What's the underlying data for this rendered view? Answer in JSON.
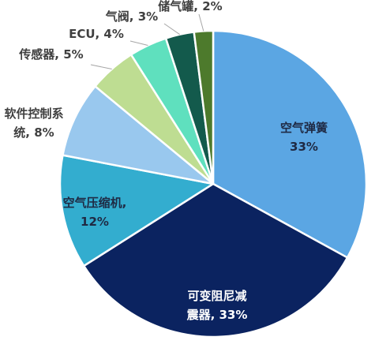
{
  "chart_data": {
    "type": "pie",
    "title": "",
    "start_angle_deg": 0,
    "direction": "clockwise",
    "legend": "none",
    "slices": [
      {
        "label": "空气弹簧",
        "value": 33,
        "color": "#5ba6e3",
        "label_lines": [
          "空气弹簧",
          "33%"
        ],
        "label_color": "#1f2a44"
      },
      {
        "label": "可变阻尼减震器",
        "value": 33,
        "color": "#0b2360",
        "label_lines": [
          "可变阻尼减",
          "震器, 33%"
        ],
        "label_color": "#ffffff"
      },
      {
        "label": "空气压缩机",
        "value": 12,
        "color": "#33adcf",
        "label_lines": [
          "空气压缩机,",
          "12%"
        ],
        "label_color": "#1f2a44"
      },
      {
        "label": "软件控制系统",
        "value": 8,
        "color": "#99c8ee",
        "label_lines": [
          "软件控制系",
          "统, 8%"
        ],
        "label_color": "#404040"
      },
      {
        "label": "传感器",
        "value": 5,
        "color": "#bedd92",
        "label_lines": [
          "传感器, 5%"
        ],
        "label_color": "#404040"
      },
      {
        "label": "ECU",
        "value": 4,
        "color": "#5fe0be",
        "label_lines": [
          "ECU, 4%"
        ],
        "label_color": "#404040"
      },
      {
        "label": "气阀",
        "value": 3,
        "color": "#135a4c",
        "label_lines": [
          "气阀, 3%"
        ],
        "label_color": "#404040"
      },
      {
        "label": "储气罐",
        "value": 2,
        "color": "#4d7a2c",
        "label_lines": [
          "储气罐, 2%"
        ],
        "label_color": "#404040"
      }
    ]
  }
}
